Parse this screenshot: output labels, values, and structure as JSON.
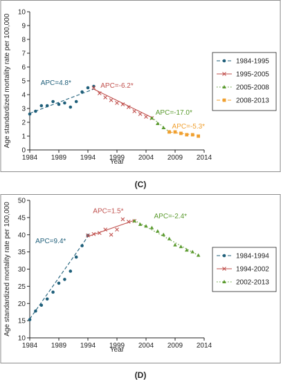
{
  "panels": [
    {
      "panel_label": "(C)",
      "chart_data": {
        "type": "line",
        "ylabel": "Age standardized mortality rate per 100,000",
        "xlabel": "Year",
        "xlim": [
          1984,
          2014
        ],
        "ylim": [
          0,
          10
        ],
        "x_ticks": [
          1984,
          1989,
          1994,
          1999,
          2004,
          2009,
          2014
        ],
        "y_ticks": [
          0,
          1,
          2,
          3,
          4,
          5,
          6,
          7,
          8,
          9,
          10
        ],
        "grid": false,
        "legend_position": "right",
        "series": [
          {
            "name": "1984-1995",
            "color": "#1f5f7a",
            "marker": "circle",
            "dash": "dash",
            "x": [
              1984,
              1985,
              1986,
              1987,
              1988,
              1989,
              1990,
              1991,
              1992,
              1993,
              1994,
              1995
            ],
            "y": [
              2.6,
              2.8,
              3.2,
              3.2,
              3.5,
              3.3,
              3.4,
              3.1,
              3.5,
              4.2,
              4.5,
              4.6
            ],
            "fit_x": [
              1984,
              1995
            ],
            "fit_y": [
              2.65,
              4.4
            ]
          },
          {
            "name": "1995-2005",
            "color": "#c0504d",
            "marker": "x",
            "dash": "solid",
            "x": [
              1995,
              1996,
              1997,
              1998,
              1999,
              2000,
              2001,
              2002,
              2003,
              2004,
              2005
            ],
            "y": [
              4.5,
              4.1,
              3.8,
              3.6,
              3.4,
              3.3,
              3.1,
              2.8,
              2.6,
              2.4,
              2.3
            ],
            "fit_x": [
              1995,
              2005
            ],
            "fit_y": [
              4.4,
              2.35
            ]
          },
          {
            "name": "2005-2008",
            "color": "#5a9a2e",
            "marker": "triangle",
            "dash": "dot",
            "x": [
              2005,
              2006,
              2007,
              2008
            ],
            "y": [
              2.3,
              1.9,
              1.6,
              1.3
            ],
            "fit_x": [
              2005,
              2008
            ],
            "fit_y": [
              2.35,
              1.3
            ]
          },
          {
            "name": "2008-2013",
            "color": "#f0a030",
            "marker": "square",
            "dash": "dash",
            "x": [
              2008,
              2009,
              2010,
              2011,
              2012,
              2013
            ],
            "y": [
              1.3,
              1.3,
              1.2,
              1.1,
              1.1,
              1.0
            ],
            "fit_x": [
              2008,
              2013
            ],
            "fit_y": [
              1.3,
              1.05
            ]
          }
        ],
        "annotations": [
          {
            "text": "APC=4.8*",
            "x": 1988.5,
            "y": 4.7,
            "color": "#1f5f7a"
          },
          {
            "text": "APC=-6.2*",
            "x": 1999,
            "y": 4.5,
            "color": "#c0504d"
          },
          {
            "text": "APC=-17.0*",
            "x": 2008.8,
            "y": 2.55,
            "color": "#5a9a2e"
          },
          {
            "text": "APC=-5.3*",
            "x": 2011.3,
            "y": 1.55,
            "color": "#f0a030"
          }
        ]
      }
    },
    {
      "panel_label": "(D)",
      "chart_data": {
        "type": "line",
        "ylabel": "Age standardized mortality rate per 100,000",
        "xlabel": "Year",
        "xlim": [
          1984,
          2014
        ],
        "ylim": [
          10,
          50
        ],
        "x_ticks": [
          1984,
          1989,
          1994,
          1999,
          2004,
          2009,
          2014
        ],
        "y_ticks": [
          10,
          15,
          20,
          25,
          30,
          35,
          40,
          45,
          50
        ],
        "grid": false,
        "legend_position": "right",
        "series": [
          {
            "name": "1984-1994",
            "color": "#1f5f7a",
            "marker": "circle",
            "dash": "dash",
            "x": [
              1984,
              1985,
              1986,
              1987,
              1988,
              1989,
              1990,
              1991,
              1992,
              1993,
              1994
            ],
            "y": [
              15.3,
              17.8,
              19.5,
              21.3,
              23.3,
              25.9,
              27.0,
              29.4,
              33.5,
              36.8,
              39.8
            ],
            "fit_x": [
              1984,
              1994
            ],
            "fit_y": [
              15.5,
              39.5
            ]
          },
          {
            "name": "1994-2002",
            "color": "#c0504d",
            "marker": "x",
            "dash": "solid",
            "x": [
              1994,
              1995,
              1996,
              1997,
              1998,
              1999,
              2000,
              2001,
              2002
            ],
            "y": [
              39.8,
              40.2,
              40.5,
              41.5,
              40.0,
              41.5,
              44.5,
              43.8,
              44.0
            ],
            "fit_x": [
              1994,
              2002
            ],
            "fit_y": [
              39.5,
              44.2
            ]
          },
          {
            "name": "2002-2013",
            "color": "#5a9a2e",
            "marker": "triangle",
            "dash": "dot",
            "x": [
              2002,
              2003,
              2004,
              2005,
              2006,
              2007,
              2008,
              2009,
              2010,
              2011,
              2012,
              2013
            ],
            "y": [
              44.0,
              43.0,
              42.5,
              42.0,
              41.0,
              40.0,
              38.8,
              37.0,
              36.5,
              35.5,
              35.0,
              34.0
            ],
            "fit_x": [
              2002,
              2013
            ],
            "fit_y": [
              44.2,
              34.0
            ]
          }
        ],
        "annotations": [
          {
            "text": "APC=9.4*",
            "x": 1987.6,
            "y": 37.5,
            "color": "#1f5f7a"
          },
          {
            "text": "APC=1.5*",
            "x": 1997.5,
            "y": 46.3,
            "color": "#c0504d"
          },
          {
            "text": "APC=-2.4*",
            "x": 2008.2,
            "y": 44.8,
            "color": "#5a9a2e"
          }
        ]
      }
    }
  ]
}
